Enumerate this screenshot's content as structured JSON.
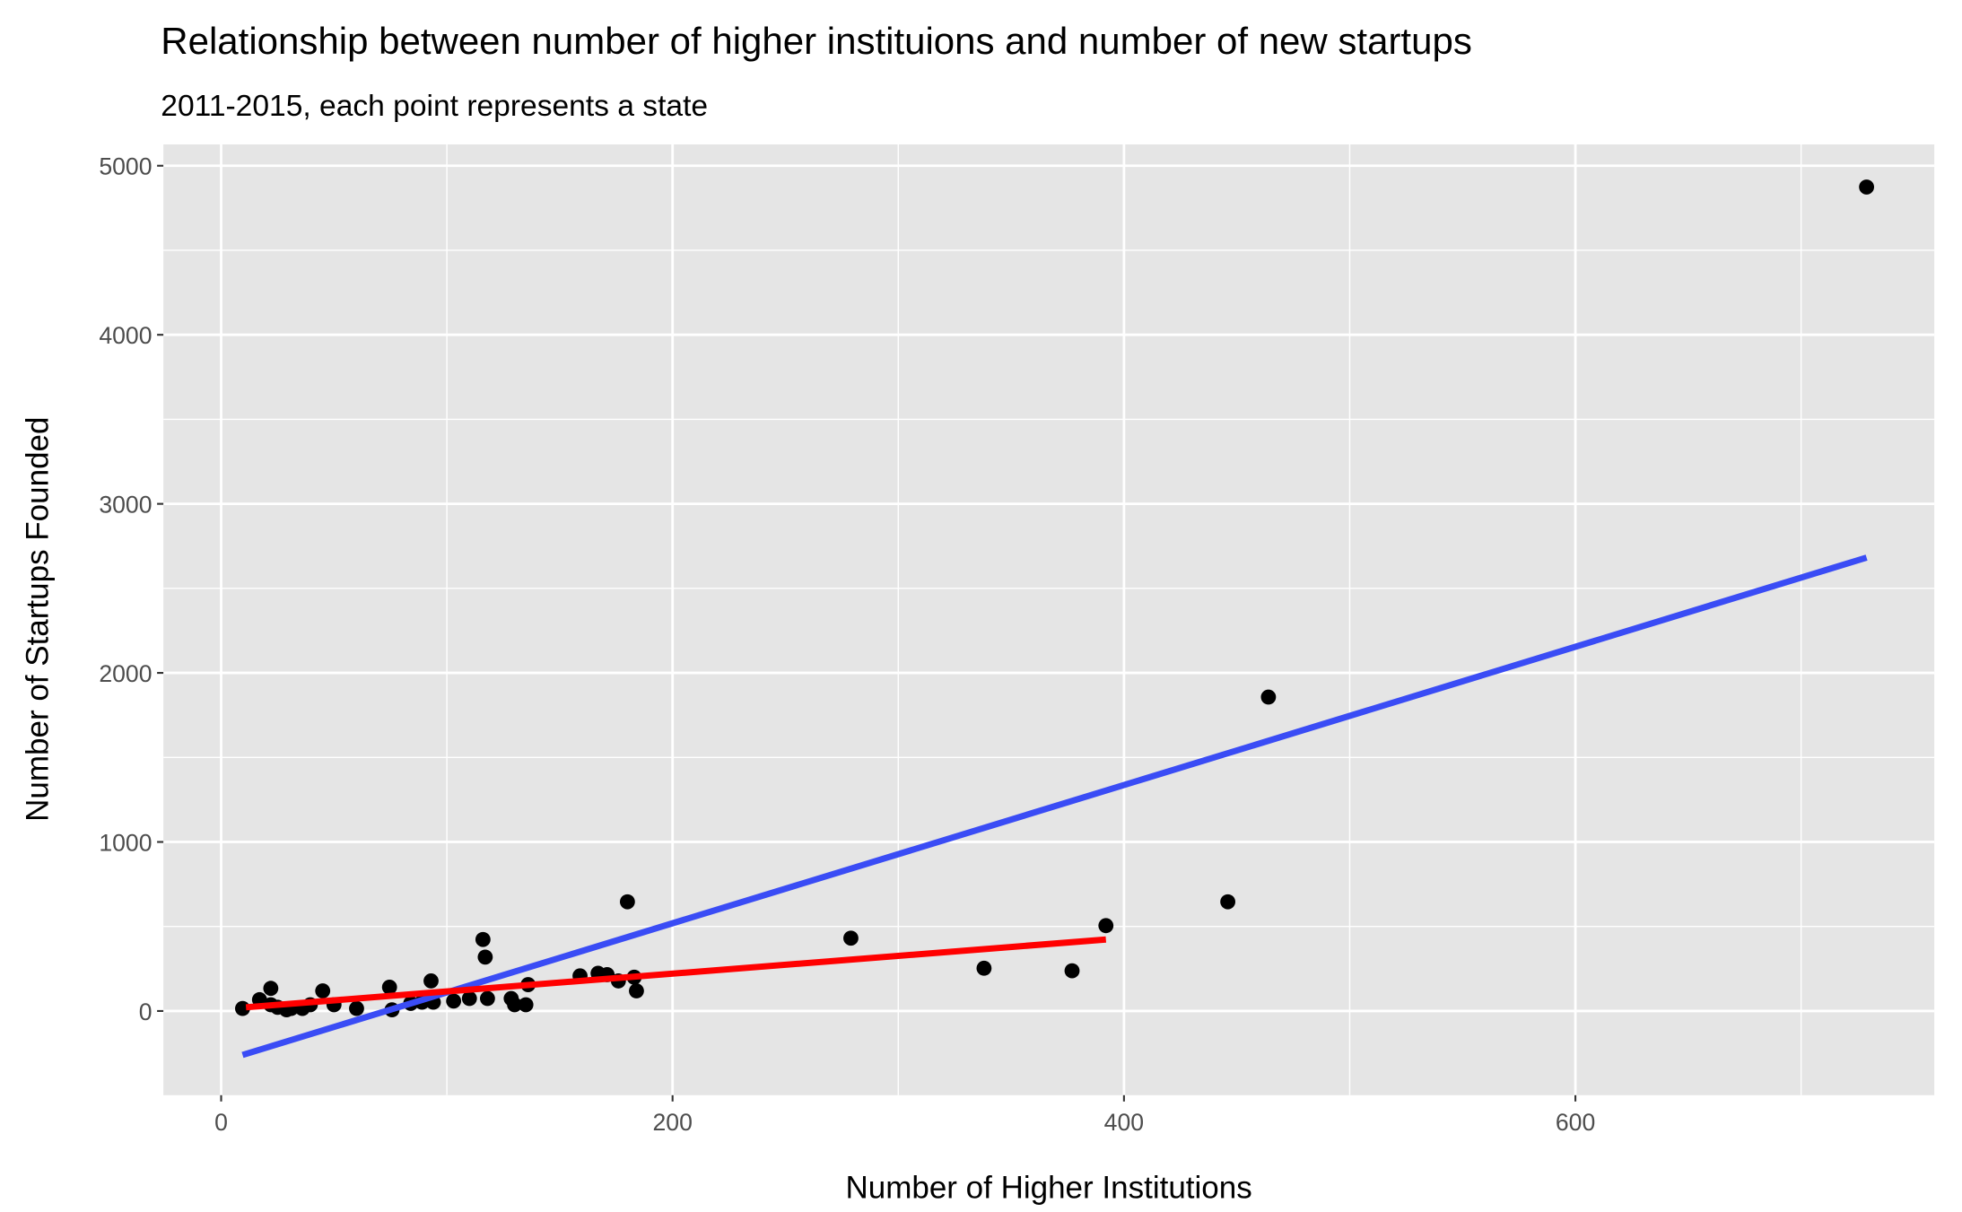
{
  "chart_data": {
    "type": "scatter",
    "title": "Relationship between number of higher instituions and number of new startups",
    "subtitle": "2011-2015, each point represents a state",
    "x_label": "Number of Higher Institutions",
    "y_label": "Number of Startups Founded",
    "xlim": [
      -25.6,
      759
    ],
    "ylim": [
      -498,
      5126
    ],
    "xticks": [
      0,
      200,
      400,
      600
    ],
    "yticks": [
      0,
      1000,
      2000,
      3000,
      4000,
      5000
    ],
    "x_minor_grid": [
      100,
      300,
      500,
      700
    ],
    "y_minor_grid": [
      500,
      1500,
      2500,
      3500,
      4500
    ],
    "grid": true,
    "color": "#000000",
    "x": [
      9.5,
      17,
      22,
      22,
      25,
      29,
      31,
      36,
      39.5,
      45,
      50,
      60,
      74.6,
      75.7,
      84,
      89,
      93,
      94,
      103,
      110,
      116,
      117,
      118,
      128.5,
      130,
      135,
      136,
      159,
      167,
      171,
      176,
      180,
      183,
      184,
      279,
      338,
      377,
      392,
      446,
      464,
      729
    ],
    "values": [
      15,
      67,
      134,
      37,
      22,
      7,
      15,
      15,
      37,
      119,
      37,
      15,
      141,
      7,
      45,
      52,
      178,
      52,
      59,
      74,
      423,
      319,
      74,
      74,
      37,
      37,
      156,
      208,
      223,
      215,
      178,
      646,
      200,
      119,
      431,
      253,
      238,
      505,
      646,
      1857,
      4874
    ],
    "fits": [
      {
        "color": "#3a4cf5",
        "x": [
          9.5,
          729
        ],
        "values": [
          -260,
          2682
        ]
      },
      {
        "color": "#ff0000",
        "x": [
          11,
          392
        ],
        "values": [
          22,
          423
        ]
      }
    ]
  }
}
